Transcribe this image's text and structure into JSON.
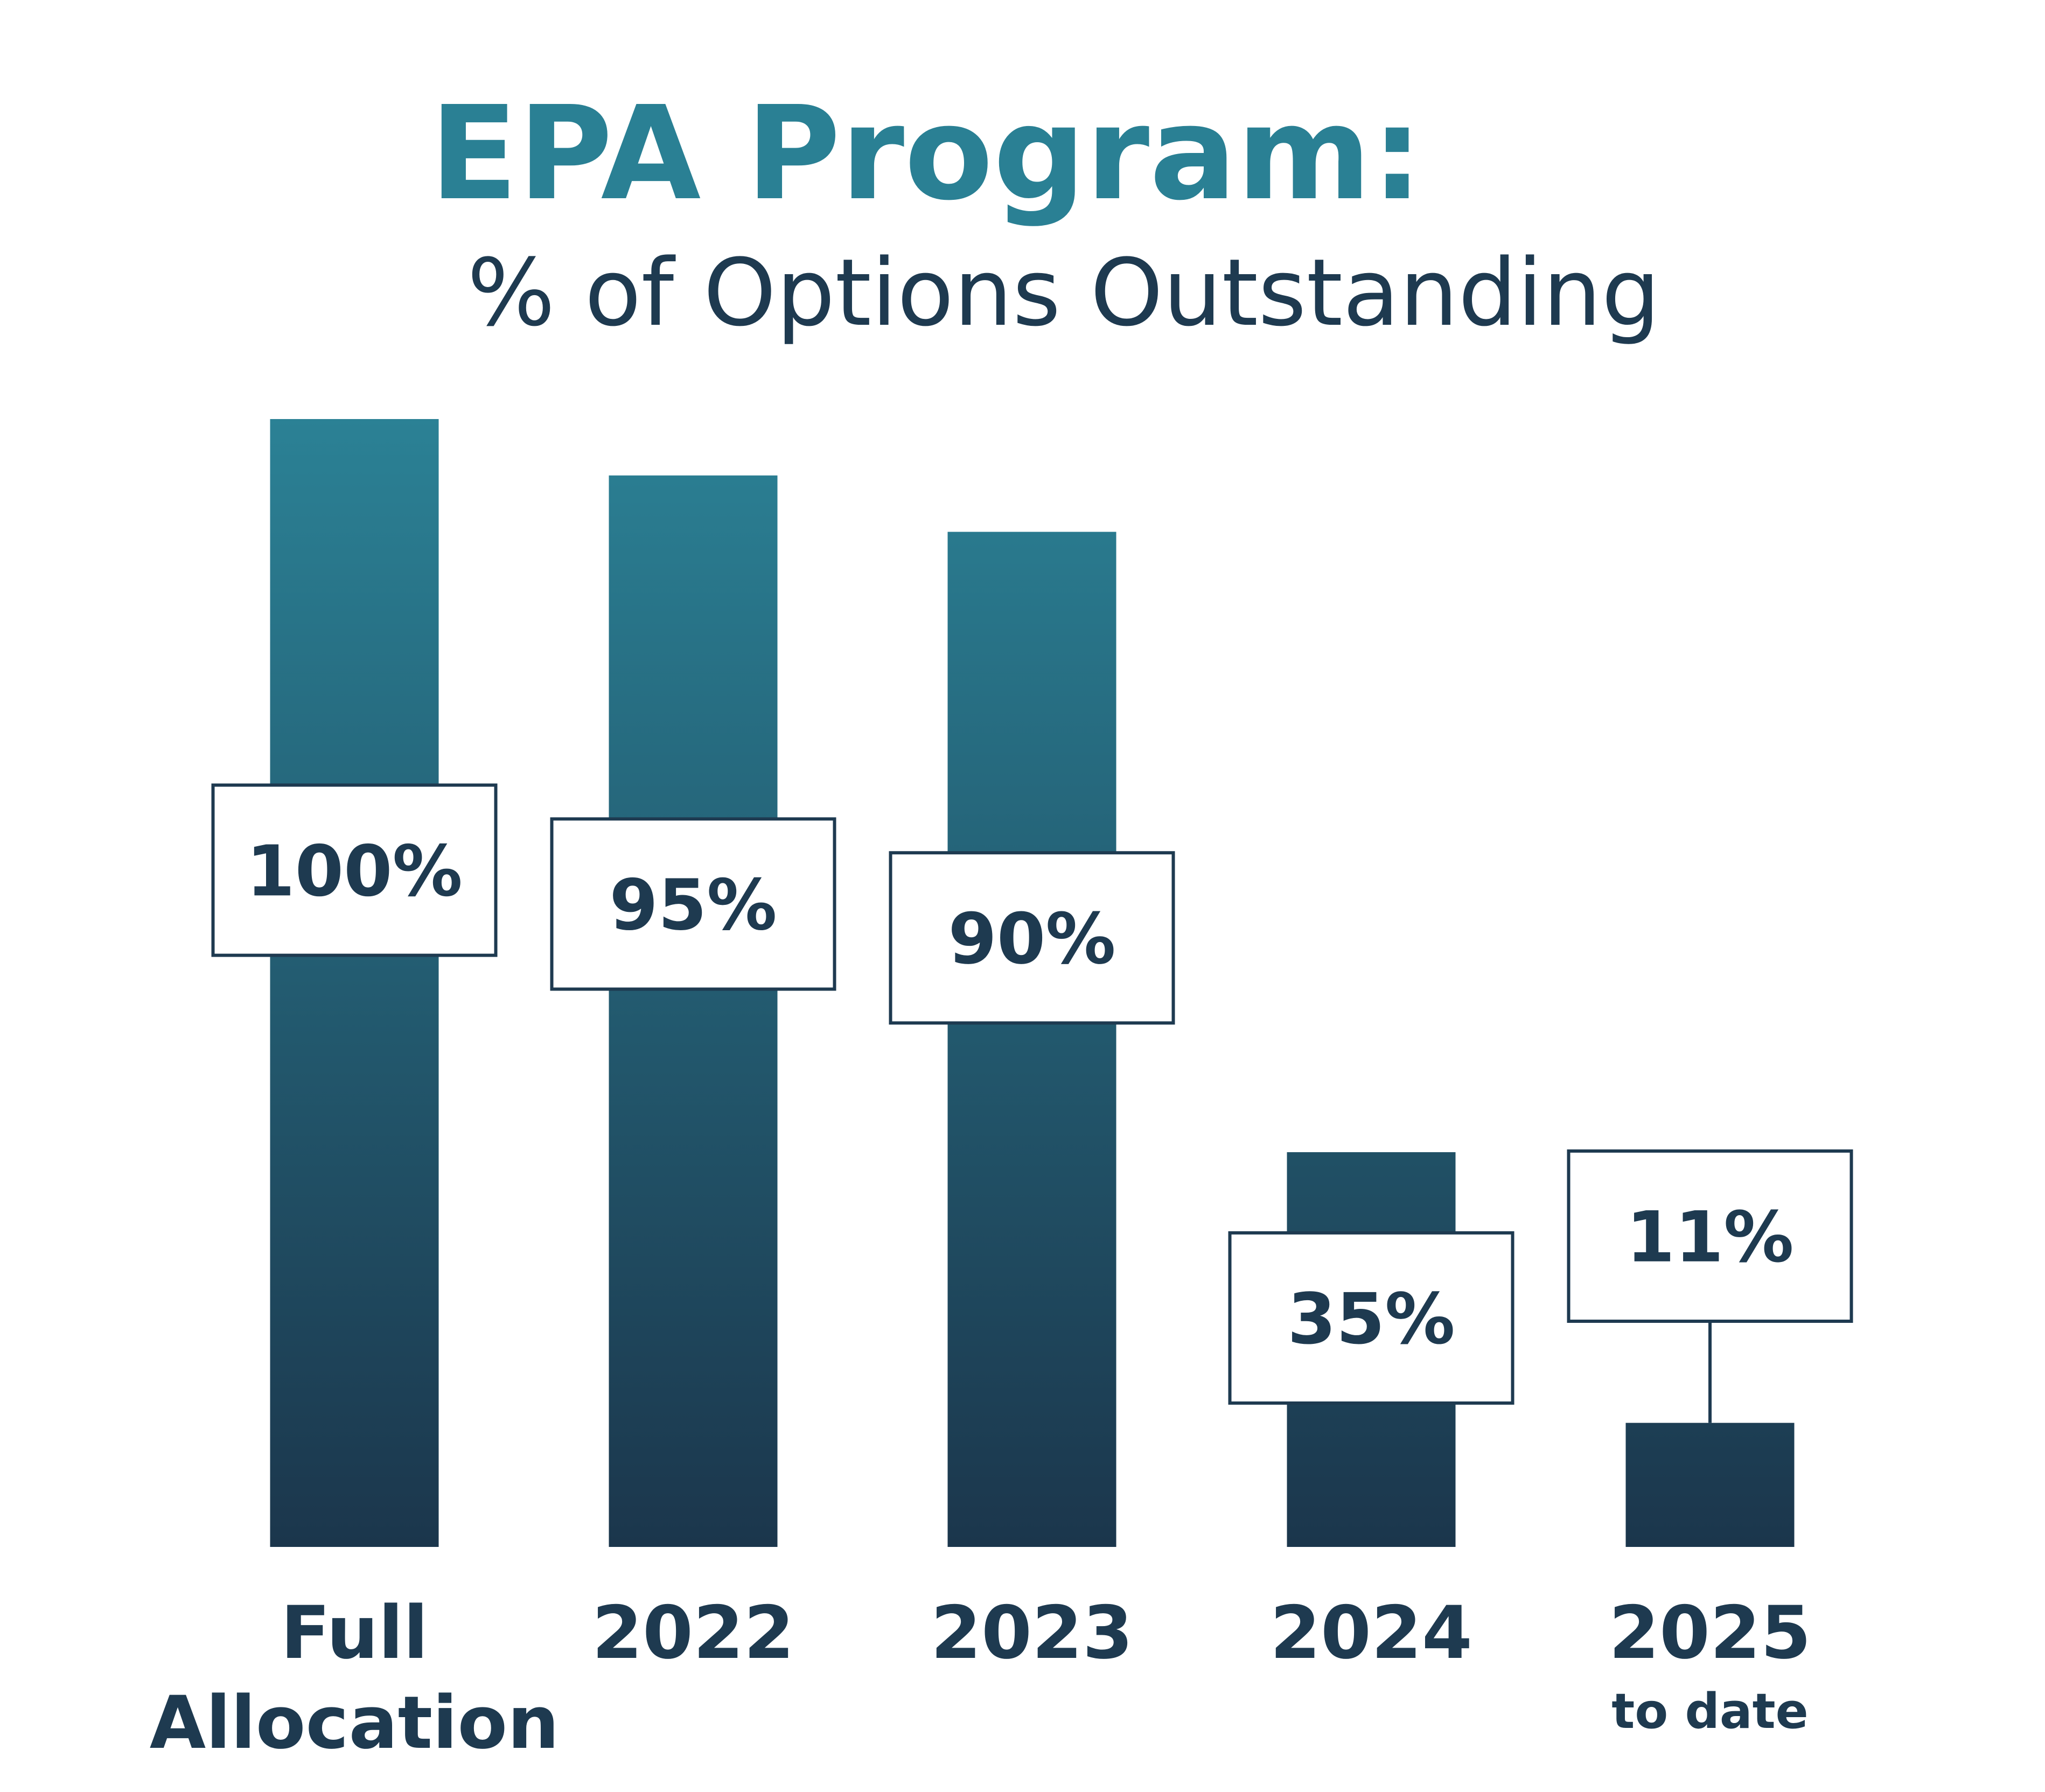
{
  "chart_data": {
    "type": "bar",
    "title": "EPA Program:",
    "subtitle": "% of Options Outstanding",
    "categories": [
      [
        "Full",
        "Allocation"
      ],
      [
        "2022"
      ],
      [
        "2023"
      ],
      [
        "2024"
      ],
      [
        "2025",
        "to date"
      ]
    ],
    "values": [
      100,
      95,
      90,
      35,
      11
    ],
    "value_labels": [
      "100%",
      "95%",
      "90%",
      "35%",
      "11%"
    ],
    "ylim": [
      0,
      100
    ],
    "xlabel": "",
    "ylabel": "",
    "grid": false,
    "legend": "none"
  },
  "colors": {
    "title": "#2a8094",
    "text_dark": "#1e3a50",
    "bar_top": "#2b8195",
    "bar_bottom": "#1b364c",
    "label_box_fill": "#ffffff",
    "label_box_stroke": "#1e3a50",
    "background": "#ffffff"
  }
}
